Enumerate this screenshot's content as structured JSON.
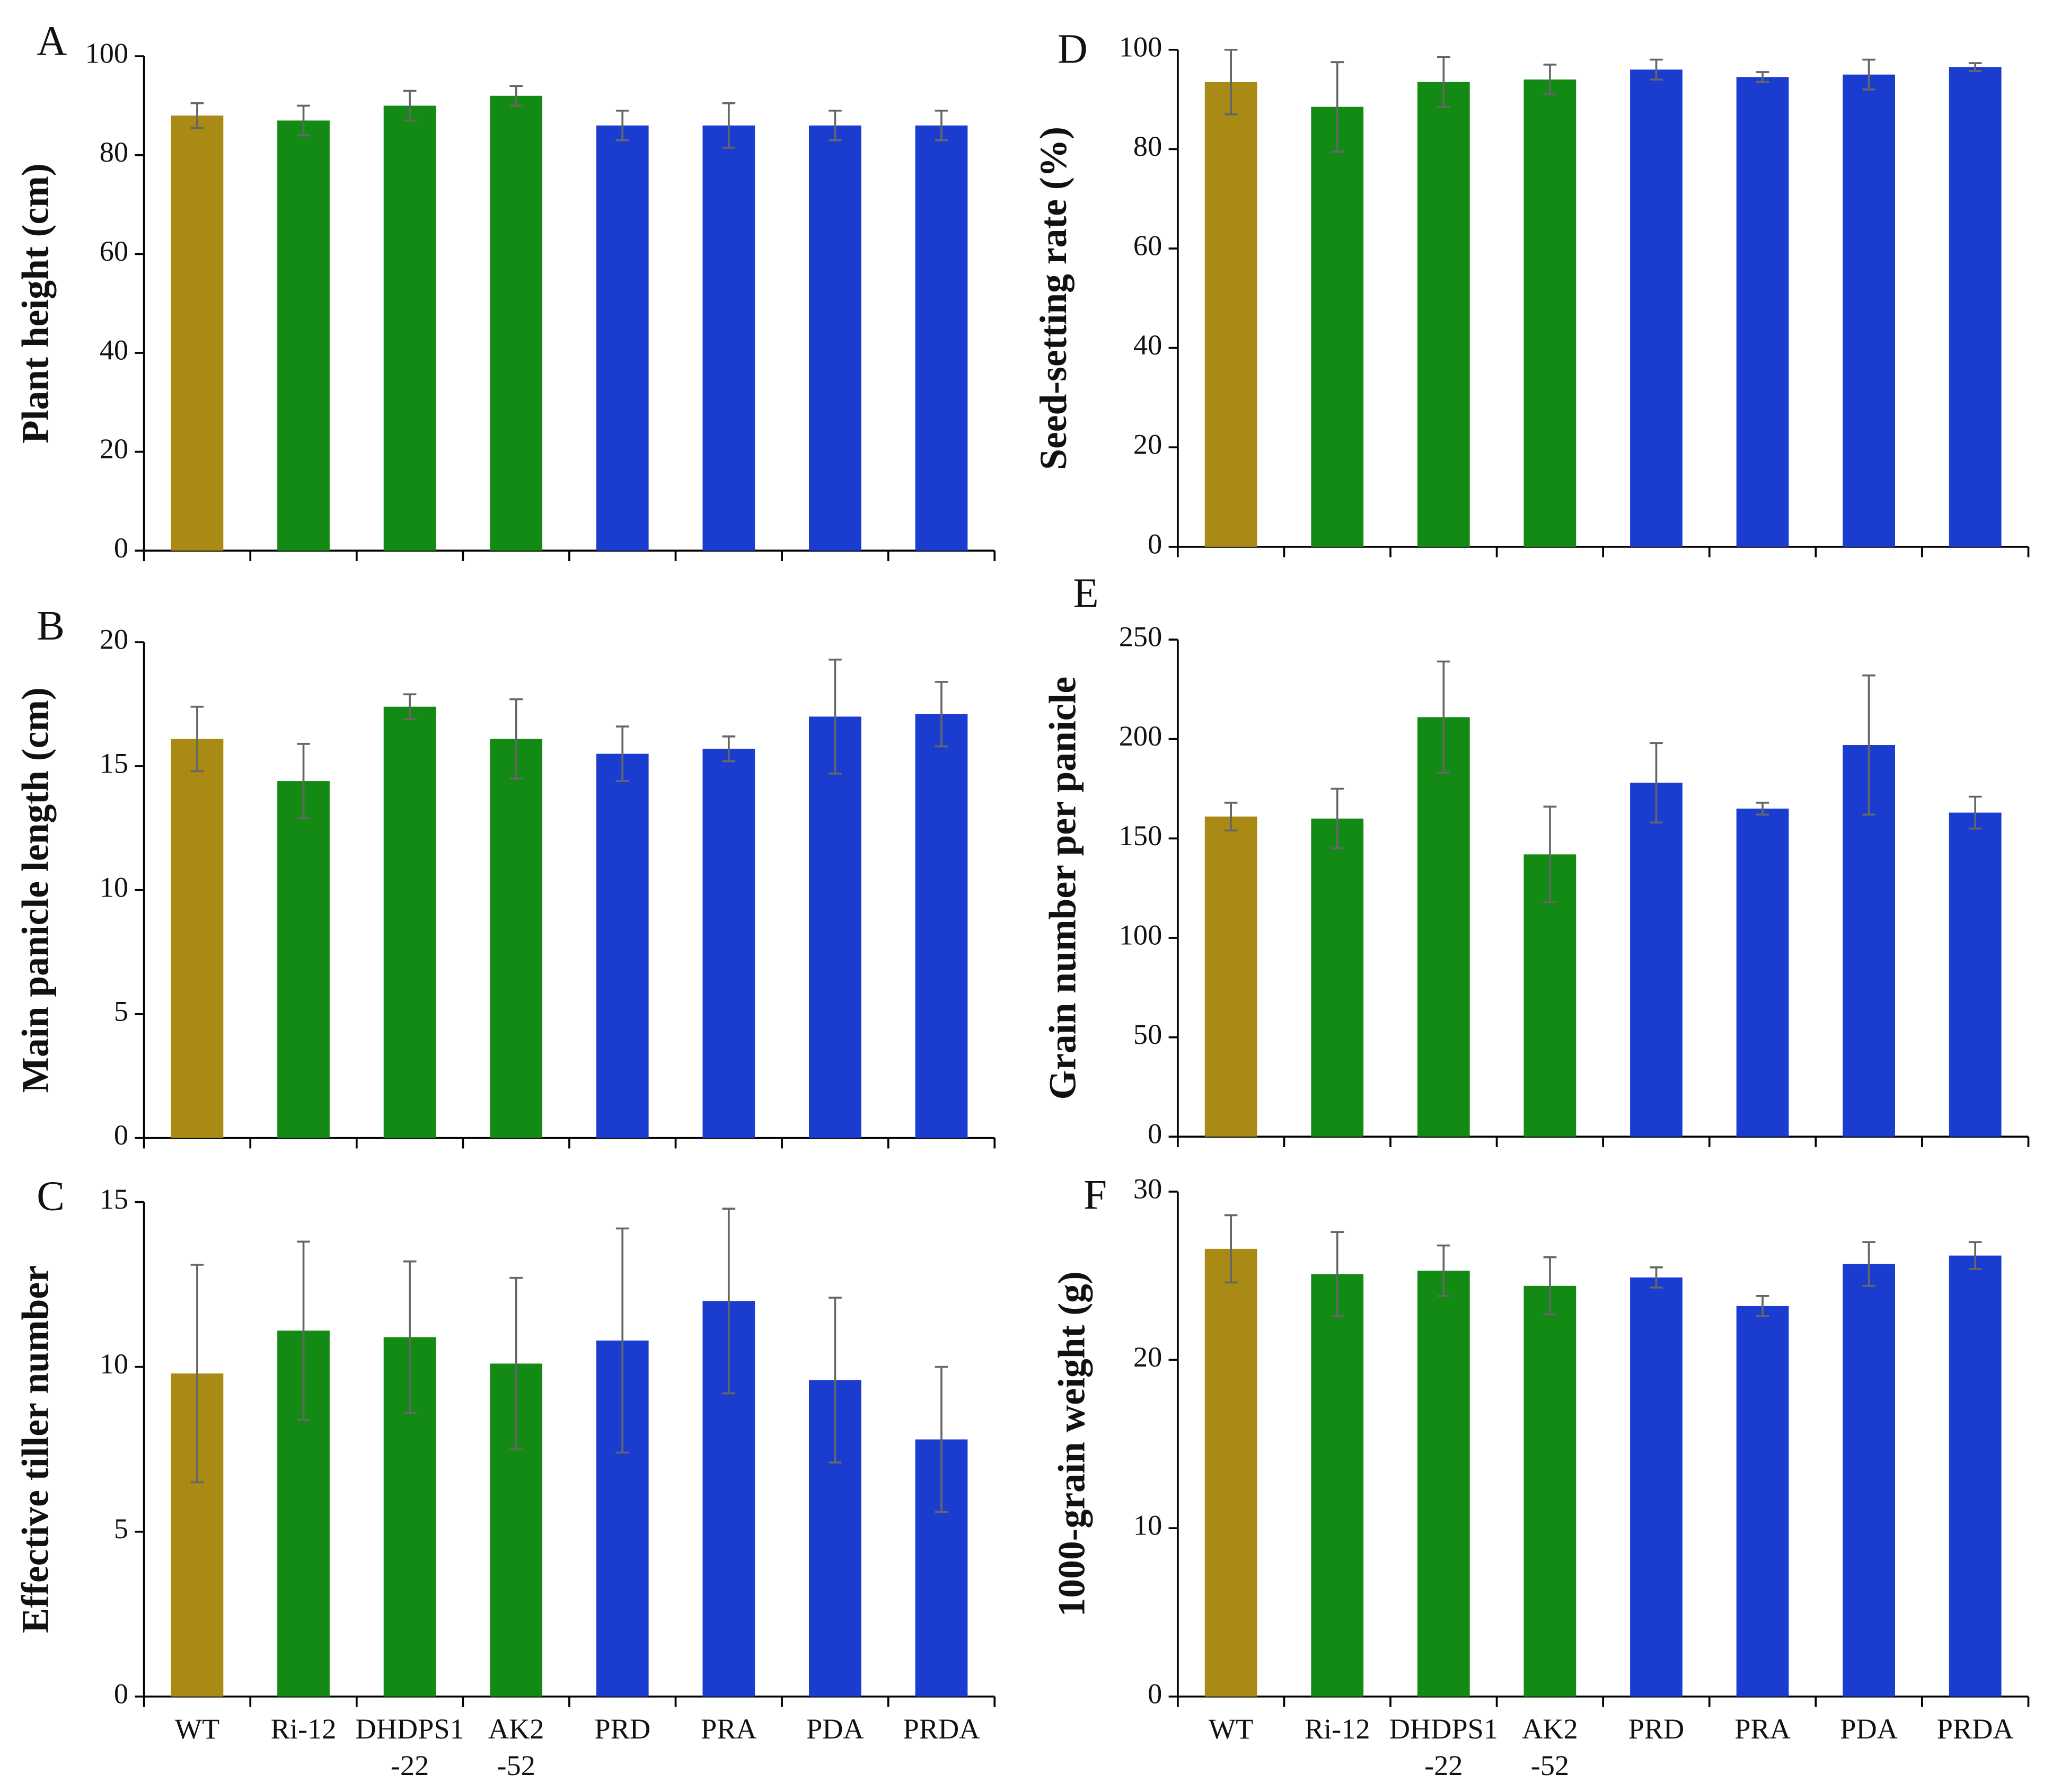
{
  "chart_data": [
    {
      "type": "bar",
      "panel": "A",
      "ylabel": "Plant height (cm)",
      "values": [
        88,
        87,
        90,
        92,
        86,
        86,
        86,
        86
      ],
      "errors": [
        2.5,
        3,
        3,
        2,
        3,
        4.5,
        3,
        3
      ],
      "colors": [
        "#a88a14",
        "#138a13",
        "#138a13",
        "#138a13",
        "#1a3ccf",
        "#1a3ccf",
        "#1a3ccf",
        "#1a3ccf"
      ],
      "ylim": [
        0,
        100
      ],
      "yticks": [
        0,
        20,
        40,
        60,
        80,
        100
      ]
    },
    {
      "type": "bar",
      "panel": "B",
      "ylabel": "Main panicle length (cm)",
      "values": [
        16.1,
        14.4,
        17.4,
        16.1,
        15.5,
        15.7,
        17.0,
        17.1
      ],
      "errors": [
        1.3,
        1.5,
        0.5,
        1.6,
        1.1,
        0.5,
        2.3,
        1.3
      ],
      "colors": [
        "#a88a14",
        "#138a13",
        "#138a13",
        "#138a13",
        "#1a3ccf",
        "#1a3ccf",
        "#1a3ccf",
        "#1a3ccf"
      ],
      "ylim": [
        0,
        20
      ],
      "yticks": [
        0,
        5,
        10,
        15,
        20
      ]
    },
    {
      "type": "bar",
      "panel": "C",
      "ylabel": "Effective tiller number",
      "categories": [
        "WT",
        "Ri-12",
        [
          "DHDPS1",
          "-22"
        ],
        [
          "AK2",
          "-52"
        ],
        "PRD",
        "PRA",
        "PDA",
        "PRDA"
      ],
      "values": [
        9.8,
        11.1,
        10.9,
        10.1,
        10.8,
        12.0,
        9.6,
        7.8
      ],
      "errors": [
        3.3,
        2.7,
        2.3,
        2.6,
        3.4,
        2.8,
        2.5,
        2.2
      ],
      "colors": [
        "#a88a14",
        "#138a13",
        "#138a13",
        "#138a13",
        "#1a3ccf",
        "#1a3ccf",
        "#1a3ccf",
        "#1a3ccf"
      ],
      "ylim": [
        0,
        15
      ],
      "yticks": [
        0,
        5,
        10,
        15
      ]
    },
    {
      "type": "bar",
      "panel": "D",
      "ylabel": "Seed-setting rate (%)",
      "values": [
        93.5,
        88.5,
        93.5,
        94,
        96,
        94.5,
        95,
        96.5
      ],
      "errors": [
        6.5,
        9,
        5,
        3,
        2,
        1,
        3,
        0.8
      ],
      "colors": [
        "#a88a14",
        "#138a13",
        "#138a13",
        "#138a13",
        "#1a3ccf",
        "#1a3ccf",
        "#1a3ccf",
        "#1a3ccf"
      ],
      "ylim": [
        0,
        100
      ],
      "yticks": [
        0,
        20,
        40,
        60,
        80,
        100
      ]
    },
    {
      "type": "bar",
      "panel": "E",
      "ylabel": "Grain number per panicle",
      "values": [
        161,
        160,
        211,
        142,
        178,
        165,
        197,
        163
      ],
      "errors": [
        7,
        15,
        28,
        24,
        20,
        3,
        35,
        8
      ],
      "colors": [
        "#a88a14",
        "#138a13",
        "#138a13",
        "#138a13",
        "#1a3ccf",
        "#1a3ccf",
        "#1a3ccf",
        "#1a3ccf"
      ],
      "ylim": [
        0,
        250
      ],
      "yticks": [
        0,
        50,
        100,
        150,
        200,
        250
      ]
    },
    {
      "type": "bar",
      "panel": "F",
      "ylabel": "1000-grain weight (g)",
      "categories": [
        "WT",
        "Ri-12",
        [
          "DHDPS1",
          "-22"
        ],
        [
          "AK2",
          "-52"
        ],
        "PRD",
        "PRA",
        "PDA",
        "PRDA"
      ],
      "values": [
        26.6,
        25.1,
        25.3,
        24.4,
        24.9,
        23.2,
        25.7,
        26.2
      ],
      "errors": [
        2,
        2.5,
        1.5,
        1.7,
        0.6,
        0.6,
        1.3,
        0.8
      ],
      "colors": [
        "#a88a14",
        "#138a13",
        "#138a13",
        "#138a13",
        "#1a3ccf",
        "#1a3ccf",
        "#1a3ccf",
        "#1a3ccf"
      ],
      "ylim": [
        0,
        30
      ],
      "yticks": [
        0,
        10,
        20,
        30
      ]
    }
  ]
}
